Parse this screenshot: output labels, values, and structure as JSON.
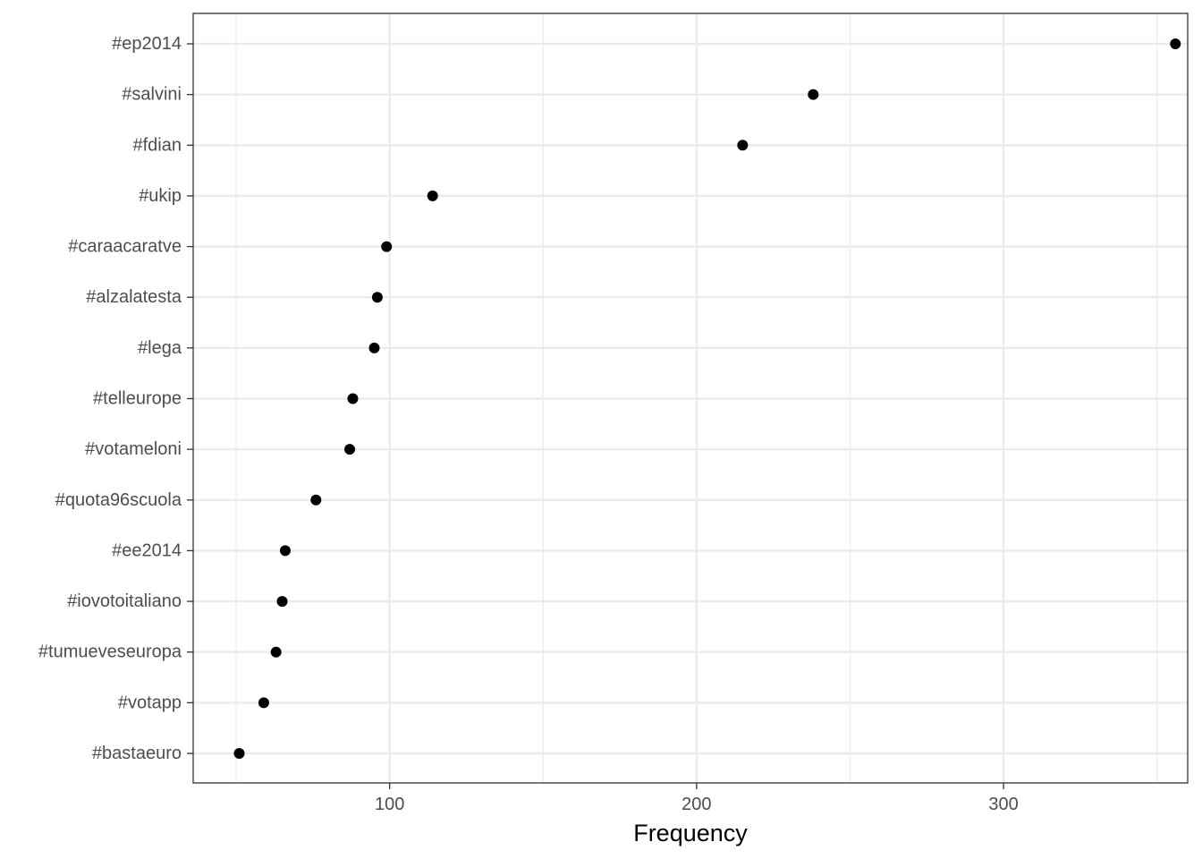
{
  "chart_data": {
    "type": "scatter",
    "xlabel": "Frequency",
    "ylabel": "",
    "xlim": [
      36,
      360
    ],
    "x_ticks": [
      100,
      200,
      300
    ],
    "x_minor_ticks": [
      50,
      150,
      250,
      350
    ],
    "grid": true,
    "legend": "none",
    "categories": [
      "#ep2014",
      "#salvini",
      "#fdian",
      "#ukip",
      "#caraacaratve",
      "#alzalatesta",
      "#lega",
      "#telleurope",
      "#votameloni",
      "#quota96scuola",
      "#ee2014",
      "#iovotoitaliano",
      "#tumueveseuropa",
      "#votapp",
      "#bastaeuro"
    ],
    "values": [
      356,
      238,
      215,
      114,
      99,
      96,
      95,
      88,
      87,
      76,
      66,
      65,
      63,
      59,
      51
    ],
    "colors": {
      "point": "#000000",
      "grid": "#ebebeb",
      "panel_border": "#333333",
      "tick_text": "#4d4d4d"
    }
  }
}
